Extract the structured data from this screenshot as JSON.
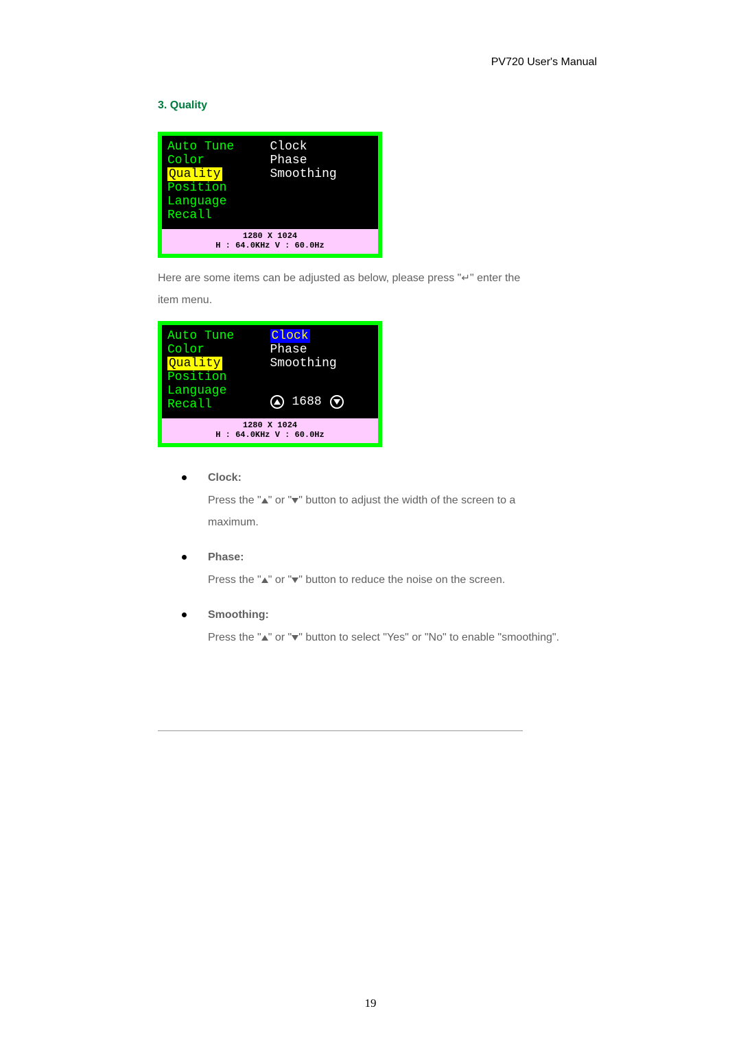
{
  "header": "PV720 User's Manual",
  "section_title": "3. Quality",
  "osd": {
    "left_items": [
      "Auto Tune",
      "Color",
      "Quality",
      "Position",
      "Language",
      "Recall"
    ],
    "right_items": [
      "Clock",
      "Phase",
      "Smoothing"
    ],
    "selected_left": "Quality",
    "selected_right": "Clock",
    "adjust_value": "1688",
    "status_res": "1280 X 1024",
    "status_hv": "H : 64.0KHz  V : 60.0Hz"
  },
  "intro_line1_a": "Here are some items can be adjusted as below, please press \"",
  "intro_line1_b": "\" enter the",
  "intro_line2": "item menu.",
  "enter_symbol": "↵",
  "bullets": [
    {
      "title": "Clock:",
      "body_a": "Press the \"",
      "body_b": "\" or \"",
      "body_c": "\" button to adjust the width of the screen to a maximum."
    },
    {
      "title": "Phase:",
      "body_a": "Press the \"",
      "body_b": "\" or \"",
      "body_c": "\" button to reduce the noise on the screen."
    },
    {
      "title": "Smoothing:",
      "body_a": "Press the \"",
      "body_b": "\" or \"",
      "body_c": "\" button to select \"Yes\" or \"No\" to enable \"smoothing\"."
    }
  ],
  "page_number": "19"
}
